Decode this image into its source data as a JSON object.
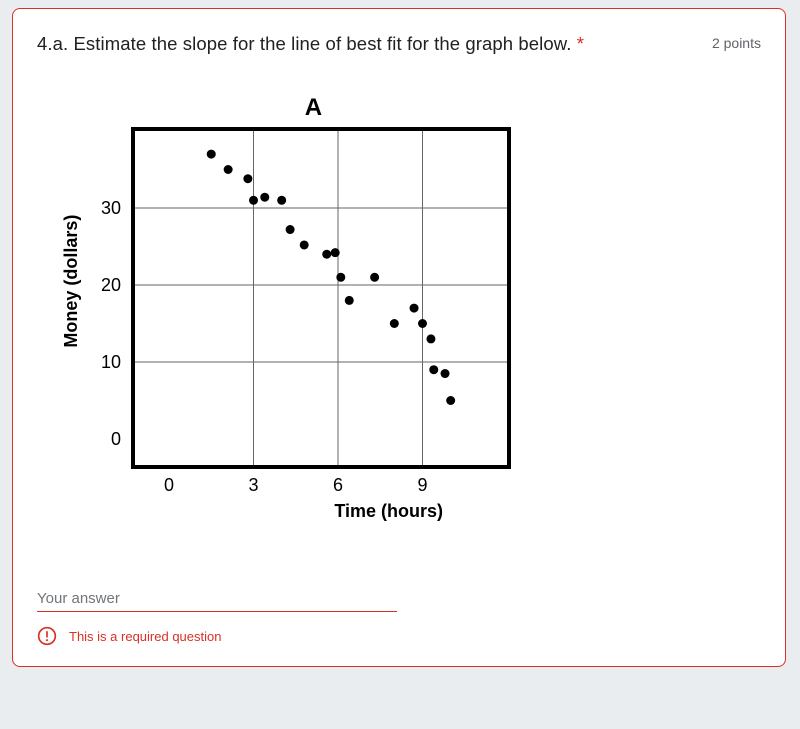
{
  "question": {
    "prompt": "4.a. Estimate the slope for the line of best fit for the graph below.",
    "required_marker": "*",
    "points_label": "2 points"
  },
  "answer": {
    "placeholder": "Your answer",
    "value": ""
  },
  "error": {
    "message": "This is a required question"
  },
  "chart": {
    "type": "scatter",
    "title": "A",
    "title_fontsize": 24,
    "title_weight": "bold",
    "xlabel": "Time (hours)",
    "ylabel": "Money (dollars)",
    "label_fontsize": 18,
    "label_weight": "bold",
    "xlim": [
      0,
      12
    ],
    "ylim": [
      0,
      40
    ],
    "xticks": [
      0,
      3,
      6,
      9
    ],
    "yticks": [
      10,
      20,
      30
    ],
    "ytick_at_origin": 0,
    "tick_fontsize": 18,
    "gridlines_x": [
      3,
      6,
      9,
      12
    ],
    "gridlines_y": [
      10,
      20,
      30,
      40
    ],
    "outer_border_width": 4,
    "outer_border_color": "#000000",
    "grid_color": "#666666",
    "grid_width": 1,
    "background_color": "#ffffff",
    "marker_color": "#000000",
    "marker_radius": 4.5,
    "points": [
      {
        "x": 1.5,
        "y": 37.0
      },
      {
        "x": 2.1,
        "y": 35.0
      },
      {
        "x": 2.8,
        "y": 33.8
      },
      {
        "x": 3.0,
        "y": 31.0
      },
      {
        "x": 3.4,
        "y": 31.4
      },
      {
        "x": 4.0,
        "y": 31.0
      },
      {
        "x": 4.3,
        "y": 27.2
      },
      {
        "x": 4.8,
        "y": 25.2
      },
      {
        "x": 5.6,
        "y": 24.0
      },
      {
        "x": 5.9,
        "y": 24.2
      },
      {
        "x": 6.1,
        "y": 21.0
      },
      {
        "x": 6.4,
        "y": 18.0
      },
      {
        "x": 7.3,
        "y": 21.0
      },
      {
        "x": 8.0,
        "y": 15.0
      },
      {
        "x": 8.7,
        "y": 17.0
      },
      {
        "x": 9.0,
        "y": 15.0
      },
      {
        "x": 9.3,
        "y": 13.0
      },
      {
        "x": 9.4,
        "y": 9.0
      },
      {
        "x": 9.8,
        "y": 8.5
      },
      {
        "x": 10.0,
        "y": 5.0
      }
    ]
  },
  "colors": {
    "card_bg": "#ffffff",
    "page_bg": "#eaedf0",
    "error": "#d93025",
    "text": "#202124",
    "muted": "#5f6368"
  }
}
